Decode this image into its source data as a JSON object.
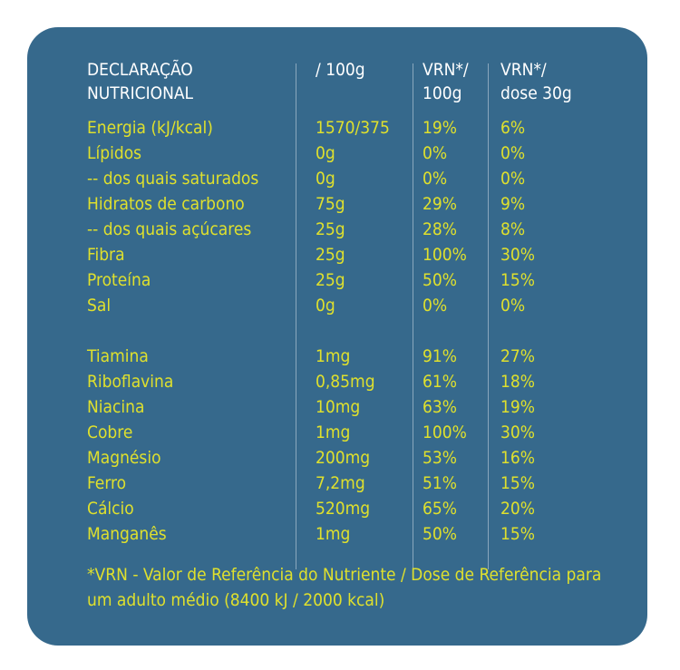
{
  "header": {
    "col1": "DECLARAÇÃO\nNUTRICIONAL",
    "col2": "/ 100g",
    "col3": "VRN*/\n100g",
    "col4": "VRN*/\ndose 30g"
  },
  "macros": [
    {
      "name": "Energia (kJ/kcal)",
      "per100g": "1570/375",
      "vrn100g": "19%",
      "vrnDose": "6%"
    },
    {
      "name": "Lípidos",
      "per100g": "0g",
      "vrn100g": "0%",
      "vrnDose": "0%"
    },
    {
      "name": "-- dos quais saturados",
      "per100g": "0g",
      "vrn100g": "0%",
      "vrnDose": "0%"
    },
    {
      "name": "Hidratos de carbono",
      "per100g": "75g",
      "vrn100g": "29%",
      "vrnDose": "9%"
    },
    {
      "name": "-- dos quais açúcares",
      "per100g": "25g",
      "vrn100g": "28%",
      "vrnDose": "8%"
    },
    {
      "name": "Fibra",
      "per100g": "25g",
      "vrn100g": "100%",
      "vrnDose": "30%"
    },
    {
      "name": "Proteína",
      "per100g": "25g",
      "vrn100g": "50%",
      "vrnDose": "15%"
    },
    {
      "name": "Sal",
      "per100g": "0g",
      "vrn100g": "0%",
      "vrnDose": "0%"
    }
  ],
  "micros": [
    {
      "name": "Tiamina",
      "per100g": "1mg",
      "vrn100g": "91%",
      "vrnDose": "27%"
    },
    {
      "name": "Riboflavina",
      "per100g": "0,85mg",
      "vrn100g": "61%",
      "vrnDose": "18%"
    },
    {
      "name": "Niacina",
      "per100g": "10mg",
      "vrn100g": "63%",
      "vrnDose": "19%"
    },
    {
      "name": "Cobre",
      "per100g": "1mg",
      "vrn100g": "100%",
      "vrnDose": "30%"
    },
    {
      "name": "Magnésio",
      "per100g": "200mg",
      "vrn100g": "53%",
      "vrnDose": "16%"
    },
    {
      "name": "Ferro",
      "per100g": "7,2mg",
      "vrn100g": "51%",
      "vrnDose": "15%"
    },
    {
      "name": "Cálcio",
      "per100g": "520mg",
      "vrn100g": "65%",
      "vrnDose": "20%"
    },
    {
      "name": "Manganês",
      "per100g": "1mg",
      "vrn100g": "50%",
      "vrnDose": "15%"
    }
  ],
  "footnote": "*VRN - Valor de Referência do Nutriente / Dose de Referência para um adulto médio (8400 kJ / 2000 kcal)",
  "colors": {
    "background": "#36698c",
    "header_text": "#ffffff",
    "value_text": "#dfe02d"
  }
}
